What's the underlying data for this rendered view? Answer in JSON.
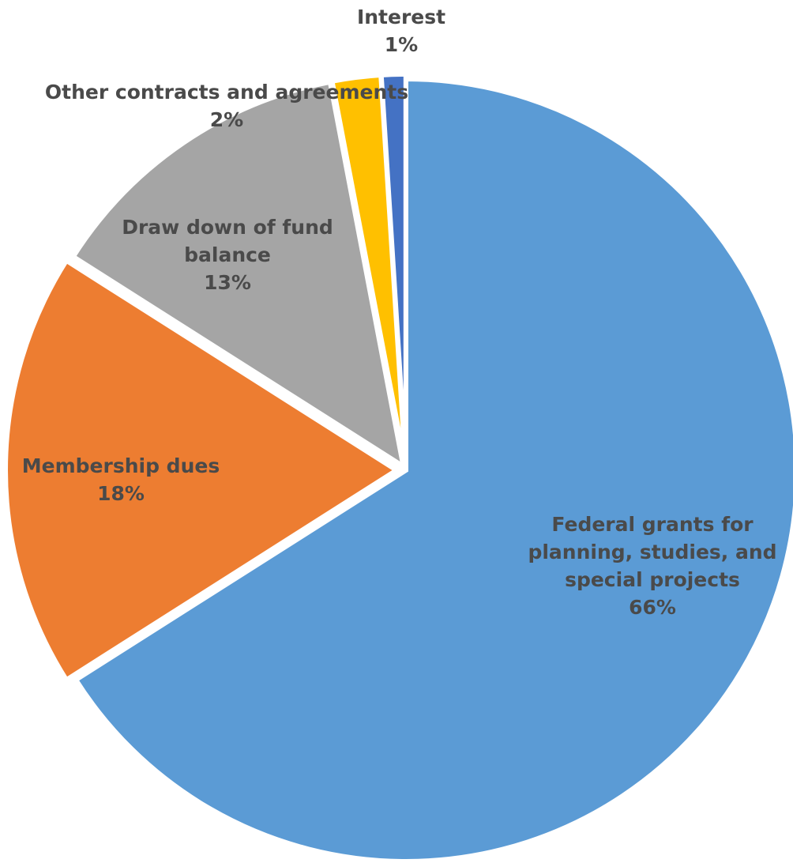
{
  "chart_data": {
    "type": "pie",
    "title": "",
    "start_angle_deg": 0,
    "direction": "clockwise",
    "slices": [
      {
        "label_lines": [
          "Federal grants for",
          "planning, studies, and",
          "special projects"
        ],
        "value": 66,
        "percent_label": "66%",
        "color": "#5b9bd5"
      },
      {
        "label_lines": [
          "Membership dues"
        ],
        "value": 18,
        "percent_label": "18%",
        "color": "#ed7d31"
      },
      {
        "label_lines": [
          "Draw down of fund",
          "balance"
        ],
        "value": 13,
        "percent_label": "13%",
        "color": "#a5a5a5"
      },
      {
        "label_lines": [
          "Other contracts and agreements"
        ],
        "value": 2,
        "percent_label": "2%",
        "color": "#ffc000"
      },
      {
        "label_lines": [
          "Interest"
        ],
        "value": 1,
        "percent_label": "1%",
        "color": "#4472c4"
      }
    ]
  }
}
